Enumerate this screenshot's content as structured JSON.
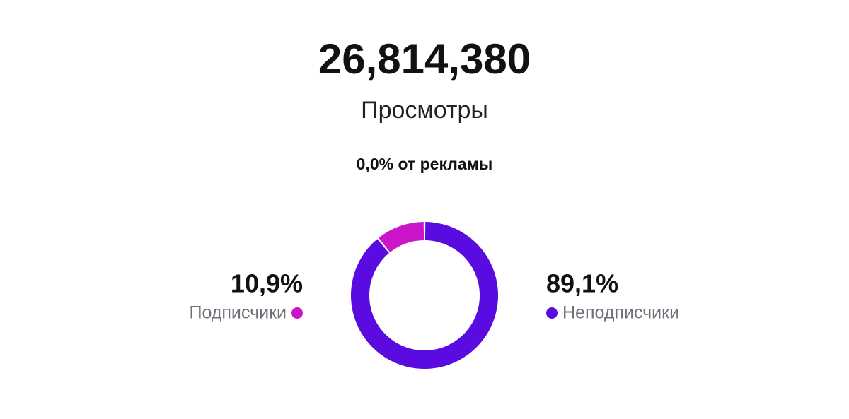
{
  "header": {
    "total": "26,814,380",
    "label": "Просмотры",
    "ads_note": "0,0% от рекламы"
  },
  "chart_data": {
    "type": "doughnut",
    "categories": [
      "Подписчики",
      "Неподписчики"
    ],
    "values": [
      10.9,
      89.1
    ],
    "value_labels": [
      "10,9%",
      "89,1%"
    ],
    "colors": [
      "#cc14c8",
      "#5a0ce0"
    ]
  }
}
